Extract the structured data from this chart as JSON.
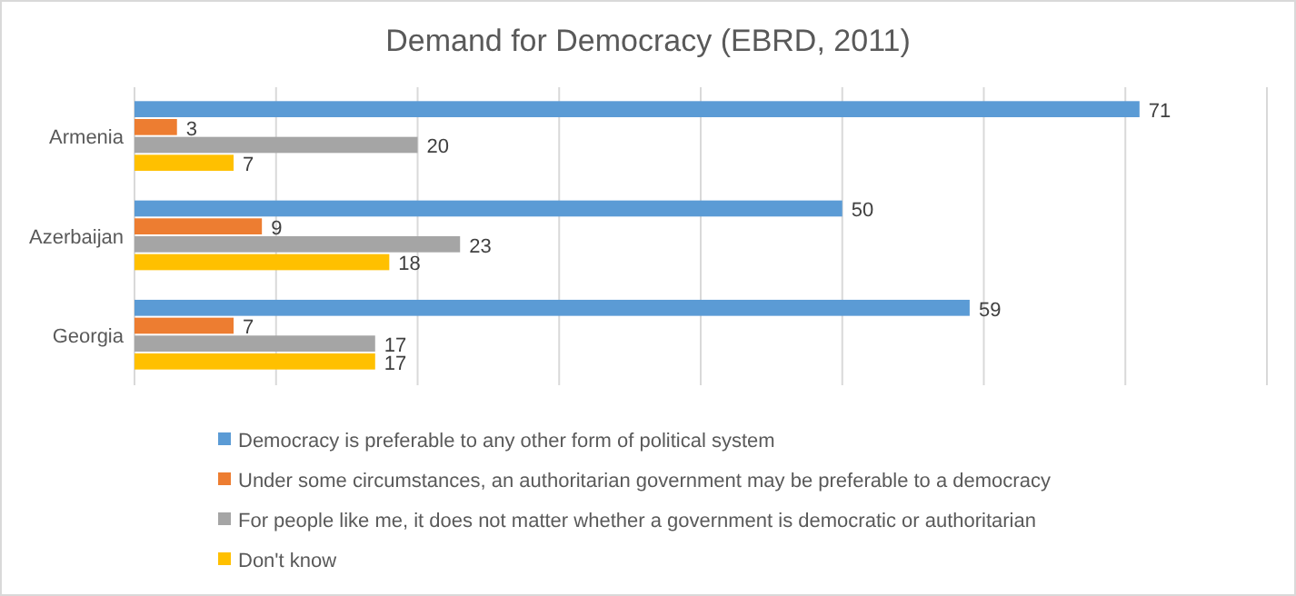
{
  "chart_data": {
    "type": "bar",
    "orientation": "horizontal",
    "title": "Demand for Democracy (EBRD, 2011)",
    "categories": [
      "Armenia",
      "Azerbaijan",
      "Georgia"
    ],
    "series": [
      {
        "name": "Democracy is preferable to any other form of political system",
        "color": "#5b9bd5",
        "values": [
          71,
          50,
          59
        ]
      },
      {
        "name": "Under some circumstances, an authoritarian government may be preferable to a democracy",
        "color": "#ed7d31",
        "values": [
          3,
          9,
          7
        ]
      },
      {
        "name": "For people like me, it does not matter whether a government is democratic or authoritarian",
        "color": "#a5a5a5",
        "values": [
          20,
          23,
          17
        ]
      },
      {
        "name": "Don't know",
        "color": "#ffc000",
        "values": [
          7,
          18,
          17
        ]
      }
    ],
    "xlim": [
      0,
      80
    ],
    "xticks": [
      {
        "value": 0,
        "label": null
      },
      {
        "value": 10,
        "label": null
      },
      {
        "value": 20,
        "label": null
      },
      {
        "value": 30,
        "label": null
      },
      {
        "value": 40,
        "label": null
      },
      {
        "value": 50,
        "label": null
      },
      {
        "value": 60,
        "label": null
      },
      {
        "value": 70,
        "label": null
      },
      {
        "value": 80,
        "label": null
      }
    ],
    "grid": "x",
    "tick_labels": "y",
    "data_labels": true,
    "legend": "bottom"
  }
}
